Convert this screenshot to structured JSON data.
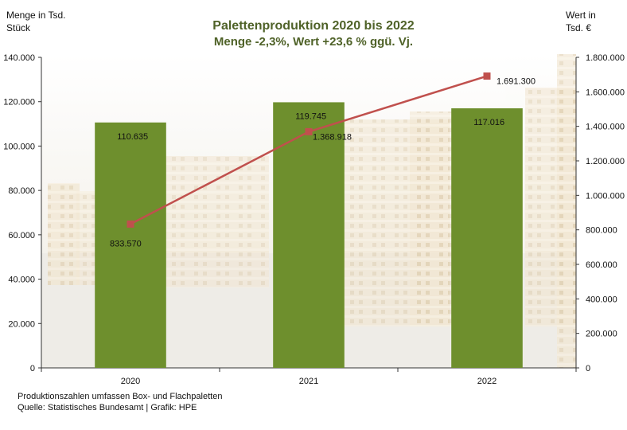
{
  "chart_data": {
    "type": "bar+line",
    "title": "Palettenproduktion 2020 bis 2022",
    "subtitle": "Menge -2,3%, Wert +23,6 % ggü. Vj.",
    "ylabel_left": [
      "Menge in Tsd.",
      "Stück"
    ],
    "ylabel_right": [
      "Wert in",
      "Tsd. €"
    ],
    "categories": [
      "2020",
      "2021",
      "2022"
    ],
    "ylim_left": [
      0,
      140000
    ],
    "ylim_right": [
      0,
      1800000
    ],
    "yticks_left": [
      "0",
      "20.000",
      "40.000",
      "60.000",
      "80.000",
      "100.000",
      "120.000",
      "140.000"
    ],
    "yticks_right": [
      "0",
      "200.000",
      "400.000",
      "600.000",
      "800.000",
      "1.000.000",
      "1.200.000",
      "1.400.000",
      "1.600.000",
      "1.800.000"
    ],
    "bars": {
      "values": [
        110635,
        119745,
        117016
      ],
      "labels": [
        "110.635",
        "119.745",
        "117.016"
      ],
      "color": "#6e8f2d"
    },
    "line": {
      "values": [
        833570,
        1368918,
        1691300
      ],
      "labels": [
        "833.570",
        "1.368.918",
        "1.691.300"
      ],
      "color": "#c0504d"
    },
    "grid": false,
    "legend": "none",
    "title_color": "#4f6228"
  },
  "footer": {
    "line1": "Produktionszahlen umfassen Box- und Flachpaletten",
    "line2": "Quelle: Statistisches Bundesamt | Grafik: HPE"
  }
}
